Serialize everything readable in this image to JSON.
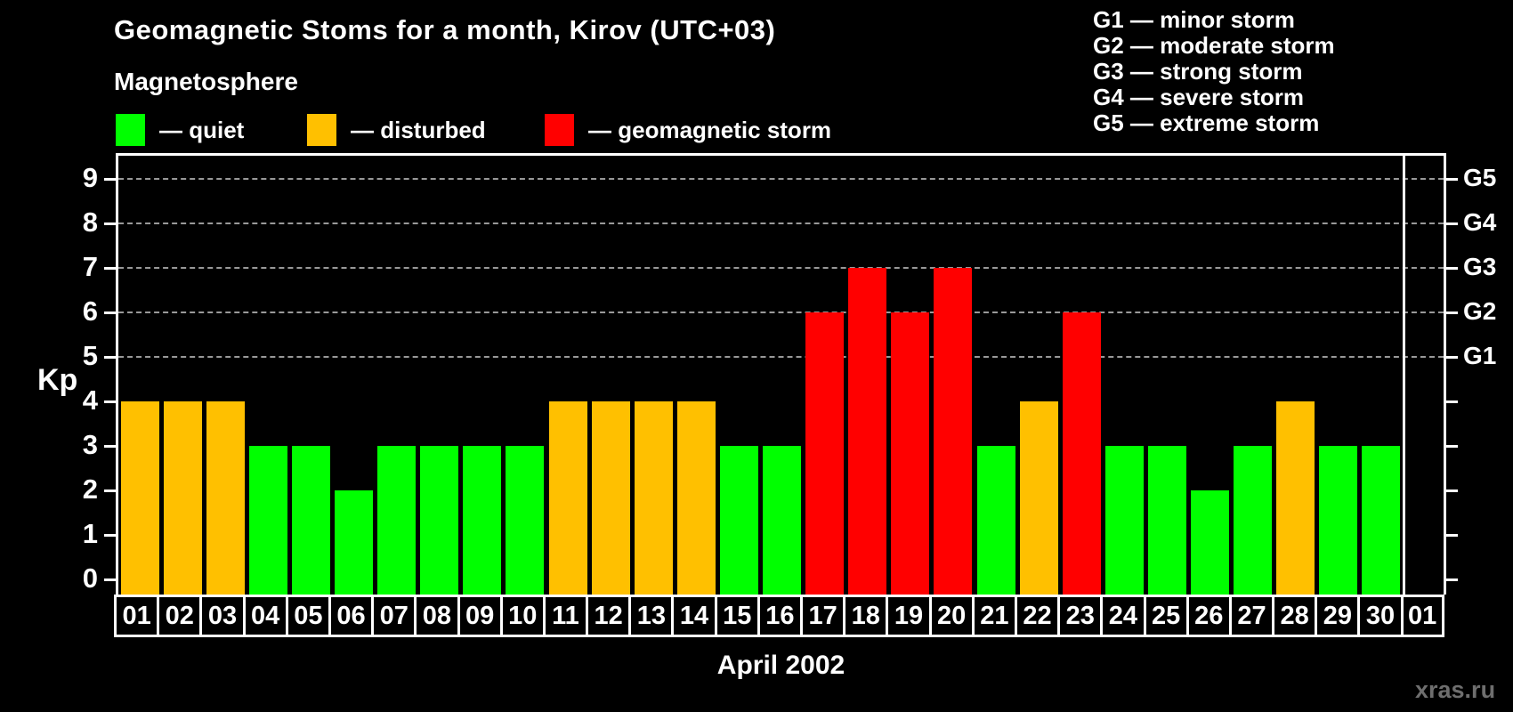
{
  "header": {
    "title": "Geomagnetic Stoms for a month, Kirov (UTC+03)",
    "subtitle": "Magnetosphere"
  },
  "legend": {
    "items": [
      {
        "key": "quiet",
        "label": "— quiet",
        "color": "#00ff00"
      },
      {
        "key": "disturbed",
        "label": "— disturbed",
        "color": "#ffc000"
      },
      {
        "key": "storm",
        "label": "— geomagnetic storm",
        "color": "#ff0000"
      }
    ]
  },
  "g_scale_legend": {
    "lines": [
      "G1 — minor storm",
      "G2 — moderate storm",
      "G3 — strong storm",
      "G4 — severe storm",
      "G5 — extreme storm"
    ]
  },
  "watermark": "xras.ru",
  "chart_data": {
    "type": "bar",
    "title": "Geomagnetic Stoms for a month, Kirov (UTC+03)",
    "xlabel": "April 2002",
    "ylabel": "Kp",
    "ylim": [
      0,
      9
    ],
    "y_ticks": [
      0,
      1,
      2,
      3,
      4,
      5,
      6,
      7,
      8,
      9
    ],
    "grid": {
      "horizontal_dashed_at": [
        5,
        6,
        7,
        8,
        9
      ],
      "color": "#999999"
    },
    "right_axis": {
      "labels": [
        "G1",
        "G2",
        "G3",
        "G4",
        "G5"
      ],
      "levels": [
        5,
        6,
        7,
        8,
        9
      ]
    },
    "status_colors": {
      "quiet": "#00ff00",
      "disturbed": "#ffc000",
      "storm": "#ff0000"
    },
    "categories": [
      "01",
      "02",
      "03",
      "04",
      "05",
      "06",
      "07",
      "08",
      "09",
      "10",
      "11",
      "12",
      "13",
      "14",
      "15",
      "16",
      "17",
      "18",
      "19",
      "20",
      "21",
      "22",
      "23",
      "24",
      "25",
      "26",
      "27",
      "28",
      "29",
      "30",
      "01"
    ],
    "values": [
      4,
      4,
      4,
      3,
      3,
      2,
      3,
      3,
      3,
      3,
      4,
      4,
      4,
      4,
      3,
      3,
      6,
      7,
      6,
      7,
      3,
      4,
      6,
      3,
      3,
      2,
      3,
      4,
      3,
      3,
      null
    ],
    "statuses": [
      "disturbed",
      "disturbed",
      "disturbed",
      "quiet",
      "quiet",
      "quiet",
      "quiet",
      "quiet",
      "quiet",
      "quiet",
      "disturbed",
      "disturbed",
      "disturbed",
      "disturbed",
      "quiet",
      "quiet",
      "storm",
      "storm",
      "storm",
      "storm",
      "quiet",
      "disturbed",
      "storm",
      "quiet",
      "quiet",
      "quiet",
      "quiet",
      "disturbed",
      "quiet",
      "quiet",
      "none"
    ]
  }
}
